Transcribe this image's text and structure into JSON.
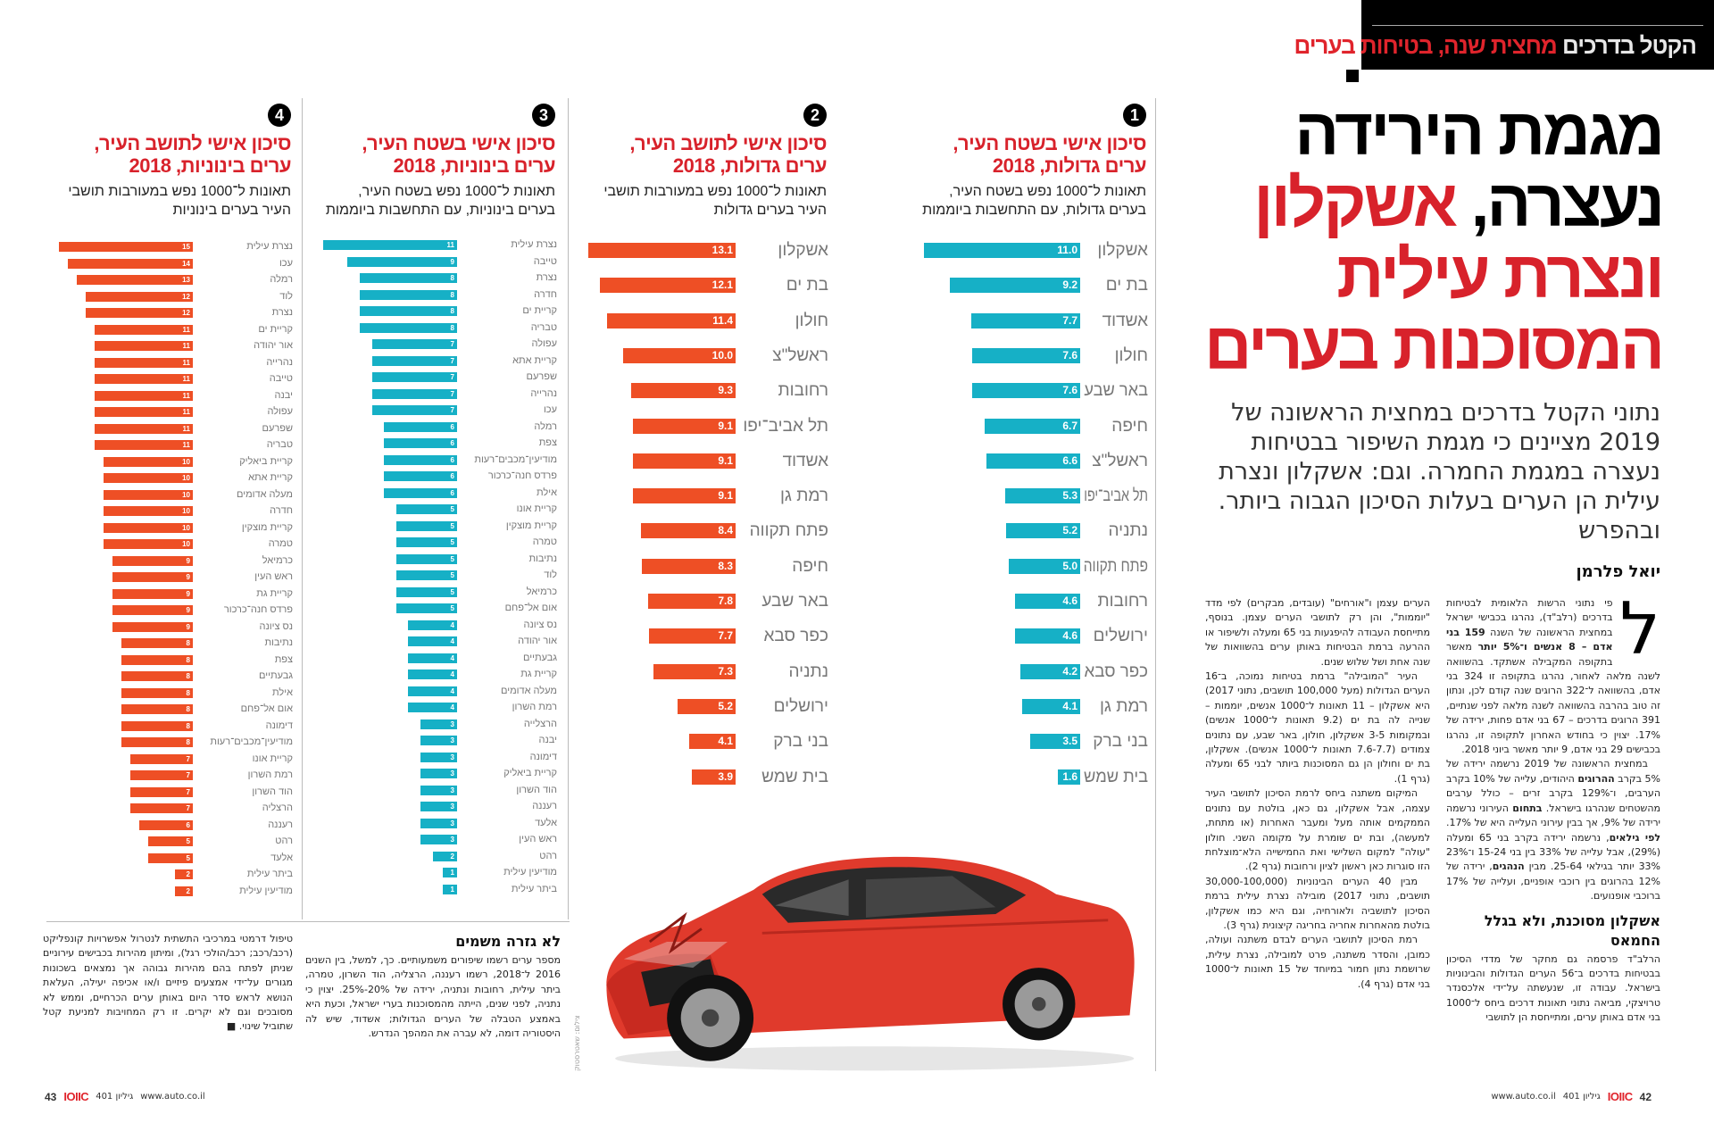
{
  "banner": {
    "section_white": "הקטל בדרכים",
    "section_red": "מחצית שנה, בטיחות בערים"
  },
  "headline": {
    "line1": "מגמת הירידה",
    "line2_black": "נעצרה,",
    "line2_red": "אשקלון",
    "line3": "ונצרת עילית",
    "line4": "המסוכנות בערים"
  },
  "deck": "נתוני הקטל בדרכים במחצית הראשונה של 2019 מציינים כי מגמת השיפור בבטיחות נעצרה במגמת החמרה. וגם: אשקלון ונצרת עילית הן הערים בעלות הסיכון הגבוה ביותר. ובהפרש",
  "byline": "יואל פלרמן",
  "body": {
    "dropcap": "ל",
    "col1": [
      [
        "פי נתוני הרשות הלאומית לבטיחות בדרכים (רלב\"ד), נהרגו בכבישי ישראל במחצית הראשונה של השנה ",
        "159 בני אדם – 8 אנשים ו־5% יותר",
        " מאשר בתקופה המקבילה אשתקד. בהשוואה לשנה מלאה לאחור, נהרגו בתקופה זו 324 בני אדם, בהשוואה ל־322 הרוגים שנה קודם לכן, ונתון זה טוב בהרבה בהשוואה לשנה מלאה לפני שנתיים, 391 הרוגים בדרכים – 67 בני אדם פחות, ירידה של 17%. יצוין כי בחודש האחרון לתקופה זו, נהרגו בכבישים 29 בני אדם, 9 יותר מאשר ביוני 2018."
      ],
      [
        "במחצית הראשונה של 2019 נרשמה ירידה של 5% בקרב ",
        "ההרוגים",
        " היהודים, עלייה של 10% בקרב הערבים, ו־129% בקרב זרים – כולל ערבים מהשטחים שנהרגו בישראל. ",
        "בתחום",
        " העירוני נרשמה ירידה של 9%, אך בבין עירוני העלייה היא של 17%. ",
        "לפי גילאים",
        ", נרשמה ירידה בקרב בני 65 ומעלה (29%), אבל עלייה של 33% בין בני 15-24 ו־23% 33% יותר בגילאי 25-64. מבין ",
        "הנהגים",
        ", ירידה של 12% בהרוגים בין רוכבי אופניים, ועלייה של 17% ברוכבי אופנועים."
      ]
    ],
    "col1_subhead": "אשקלון מסוכנת, ולא בגלל החמאס",
    "col1_tail": "הרלב\"ד פרסמה גם מחקר של מדדי הסיכון בבטיחות בדרכים ב־56 הערים הגדולות והבינוניות בישראל. עבודה זו, שנעשתה על־ידי אלכסנדר טרויצקי, מביאה נתוני תאונות דרכים ביחס ל־1000 בני אדם באותן ערים, ומתייחסת הן לתושבי",
    "col2": [
      "הערים עצמן ו\"אורחים\" (עובדים, מבקרים) לפי מדד \"יוממות\", והן רק לתושבי הערים עצמן. בנוסף, מתייחסת העבודה להיפגעות בני 65 ומעלה ולשיפור או ההרעה ברמת הבטיחות באותן ערים בהשוואות של שנה אחת ושל שלוש שנים.",
      "העיר \"המובילה\" ברמת בטיחות נמוכה, ב־16 הערים הגדולות (מעל 100,000 תושבים, נתוני 2017) היא אשקלון – 11 תאונות ל־1000 אנשים, יוממות – שנייה לה בת ים (9.2 תאונות ל־1000 אנשים) ובמקומות 3-5 אשקלון, חולון, באר שבע, עם נתונים צמודים (7.6-7.7 תאונות ל־1000 אנשים). אשקלון, בת ים וחולון הן גם המסוכנות ביותר לבני 65 ומעלה (גרף 1).",
      "המיקום משתנה ביחס לרמת הסיכון לתושבי העיר עצמה, אבל אשקלון, גם כאן, בולטת עם נתונים הממקמים אותה מעל ומעבר האחרות (או מתחת, למעשה), ובת ים שומרת על מקומה השני. חולון \"עולה\" למקום השלישי ואת החמישייה הלא־מוצלחת הזו סוגרות כאן ראשון לציון ורחובות (גרף 2).",
      "מבין 40 הערים הבינוניות (30,000-100,000 תושבים, נתוני 2017) מובילה נצרת עילית ברמת הסיכון לתושביה ולאורחיה, וגם היא כמו אשקלון, בולטת מהאחרות אחריה בחריגה קיצונית (גרף 3).",
      "רמת הסיכון לתושבי הערים לבדם משתנה ועולה, כמובן, והסדר משתנה, פרט למובילה, נצרת עילית, שרושמת נתון חמור במיוחד של 15 תאונות ל־1000 בני אדם (גרף 4)."
    ],
    "col3_subhead": "לא גזרה משמים",
    "col3": "מספר ערים רשמו שיפורים משמעותיים. כך, למשל, בין השנים 2016 ל־2018, רשמו רעננה, הרצליה, הוד השרון, טמרה, ביתר עילית, רחובות ונתניה, ירידה של 20%-25%. יצוין כי נתניה, לפני שנים, הייתה מהמסוכנות בערי ישראל, וכעת היא באמצע הטבלה של הערים הגדולות; אשדוד, שיש לה היסטוריה דומה, לא עברה את המהפך הנדרש.",
    "col4": "טיפול דרמטי במרכיבי התשתית לנטרול אפשרויות קונפליקט (רכב/רכב; רכב/הולכי רגל), ומיתון מהירות בכבישים עירוניים שניתן לפתח בהם מהירות גבוהה אך נמצאים בשכונות מגורים על־ידי אמצעים פיזיים ו/או אכיפה יעילה, העלאת הנושא לראש סדר היום באותן ערים הכרחיים, וממש לא מסובכים וגם לא יקרים. זו רק המחויבות למניעת קטל שתוביל שינוי.",
    "end_mark": "■"
  },
  "photo_credit": "צילום: שאטרסטוק",
  "footer_right": {
    "page": "42",
    "logo": "IOIIC",
    "issue": "גיליון 401",
    "url": "www.auto.co.il"
  },
  "footer_left": {
    "page": "43",
    "logo": "IOIIC",
    "issue": "גיליון 401",
    "url": "www.auto.co.il"
  },
  "colors": {
    "teal": "#16b0c6",
    "orange": "#ee4f25",
    "red_title": "#d8222b"
  },
  "chart_data": [
    {
      "number": "1",
      "type": "bar",
      "orientation": "horizontal",
      "title": "סיכון אישי בשטח העיר, ערים גדולות, 2018",
      "subtitle": "תאונות ל־1000 נפש בשטח העיר, בערים גדולות, עם התחשבות ביוממות",
      "color": "#16b0c6",
      "categories": [
        "אשקלון",
        "בת ים",
        "אשדוד",
        "חולון",
        "באר שבע",
        "חיפה",
        "ראשל\"צ",
        "תל אביב־יפו",
        "נתניה",
        "פתח תקווה",
        "רחובות",
        "ירושלים",
        "כפר סבא",
        "רמת גן",
        "בני ברק",
        "בית שמש"
      ],
      "values": [
        11.0,
        9.2,
        7.7,
        7.6,
        7.6,
        6.7,
        6.6,
        5.3,
        5.2,
        5.0,
        4.6,
        4.6,
        4.2,
        4.1,
        3.5,
        1.6
      ],
      "labels": [
        "11.0",
        "9.2",
        "7.7",
        "7.6",
        "7.6",
        "6.7",
        "6.6",
        "5.3",
        "5.2",
        "5.0",
        "4.6",
        "4.6",
        "4.2",
        "4.1",
        "3.5",
        "1.6"
      ],
      "xlim": [
        0,
        11.0
      ]
    },
    {
      "number": "2",
      "type": "bar",
      "orientation": "horizontal",
      "title": "סיכון אישי לתושב העיר, ערים גדולות, 2018",
      "subtitle": "תאונות ל־1000 נפש במעורבות תושבי העיר בערים גדולות",
      "color": "#ee4f25",
      "categories": [
        "אשקלון",
        "בת ים",
        "חולון",
        "ראשל\"צ",
        "רחובות",
        "תל אביב־יפו",
        "אשדוד",
        "רמת גן",
        "פתח תקווה",
        "חיפה",
        "באר שבע",
        "כפר סבא",
        "נתניה",
        "ירושלים",
        "בני ברק",
        "בית שמש"
      ],
      "values": [
        13.1,
        12.1,
        11.4,
        10.0,
        9.3,
        9.1,
        9.1,
        9.1,
        8.4,
        8.3,
        7.8,
        7.7,
        7.3,
        5.2,
        4.1,
        3.9
      ],
      "labels": [
        "13.1",
        "12.1",
        "11.4",
        "10.0",
        "9.3",
        "9.1",
        "9.1",
        "9.1",
        "8.4",
        "8.3",
        "7.8",
        "7.7",
        "7.3",
        "5.2",
        "4.1",
        "3.9"
      ],
      "xlim": [
        0,
        13.1
      ]
    },
    {
      "number": "3",
      "type": "bar",
      "orientation": "horizontal",
      "title": "סיכון אישי בשטח העיר, ערים בינוניות, 2018",
      "subtitle": "תאונות ל־1000 נפש בשטח העיר, בערים בינוניות, עם התחשבות ביוממות",
      "color": "#16b0c6",
      "categories": [
        "נצרת עילית",
        "טייבה",
        "נצרת",
        "חדרה",
        "קריית ים",
        "טבריה",
        "עפולה",
        "קריית אתא",
        "שפרעם",
        "נהרייה",
        "עכו",
        "רמלה",
        "צפת",
        "מודיעין־מכבים־רעות",
        "פרדס חנה־כרכור",
        "אילת",
        "קריית אונו",
        "קריית מוצקין",
        "טמרה",
        "נתיבות",
        "לוד",
        "כרמיאל",
        "אום אל־פחם",
        "נס ציונה",
        "אור יהודה",
        "גבעתיים",
        "קריית גת",
        "מעלה אדומים",
        "רמת השרון",
        "הרצלייה",
        "יבנה",
        "דימונה",
        "קריית ביאליק",
        "הוד השרון",
        "רעננה",
        "אלעד",
        "ראש העין",
        "רהט",
        "מודיעין עילית",
        "ביתר עילית"
      ],
      "values": [
        11,
        9,
        8,
        8,
        8,
        8,
        7,
        7,
        7,
        7,
        7,
        6,
        6,
        6,
        6,
        6,
        5,
        5,
        5,
        5,
        5,
        5,
        5,
        4,
        4,
        4,
        4,
        4,
        4,
        3,
        3,
        3,
        3,
        3,
        3,
        3,
        3,
        2,
        1,
        1
      ],
      "xlim": [
        0,
        11
      ]
    },
    {
      "number": "4",
      "type": "bar",
      "orientation": "horizontal",
      "title": "סיכון אישי לתושב העיר, ערים בינוניות, 2018",
      "subtitle": "תאונות ל־1000 נפש במעורבות תושבי העיר בערים בינוניות",
      "color": "#ee4f25",
      "categories": [
        "נצרת עילית",
        "עכו",
        "רמלה",
        "לוד",
        "נצרת",
        "קריית ים",
        "אור יהודה",
        "נהרייה",
        "טייבה",
        "יבנה",
        "עפולה",
        "שפרעם",
        "טבריה",
        "קריית ביאליק",
        "קריית אתא",
        "מעלה אדומים",
        "חדרה",
        "קריית מוצקין",
        "טמרה",
        "כרמיאל",
        "ראש העין",
        "קריית גת",
        "פרדס חנה־כרכור",
        "נס ציונה",
        "נתיבות",
        "צפת",
        "גבעתיים",
        "אילת",
        "אום אל־פחם",
        "דימונה",
        "מודיעין־מכבים־רעות",
        "קריית אונו",
        "רמת השרון",
        "הוד השרון",
        "הרצליה",
        "רעננה",
        "רהט",
        "אלעד",
        "ביתר עילית",
        "מודיעין עילית"
      ],
      "values": [
        15,
        14,
        13,
        12,
        12,
        11,
        11,
        11,
        11,
        11,
        11,
        11,
        11,
        10,
        10,
        10,
        10,
        10,
        10,
        9,
        9,
        9,
        9,
        9,
        8,
        8,
        8,
        8,
        8,
        8,
        8,
        7,
        7,
        7,
        7,
        6,
        5,
        5,
        2,
        2
      ],
      "xlim": [
        0,
        15
      ]
    }
  ]
}
